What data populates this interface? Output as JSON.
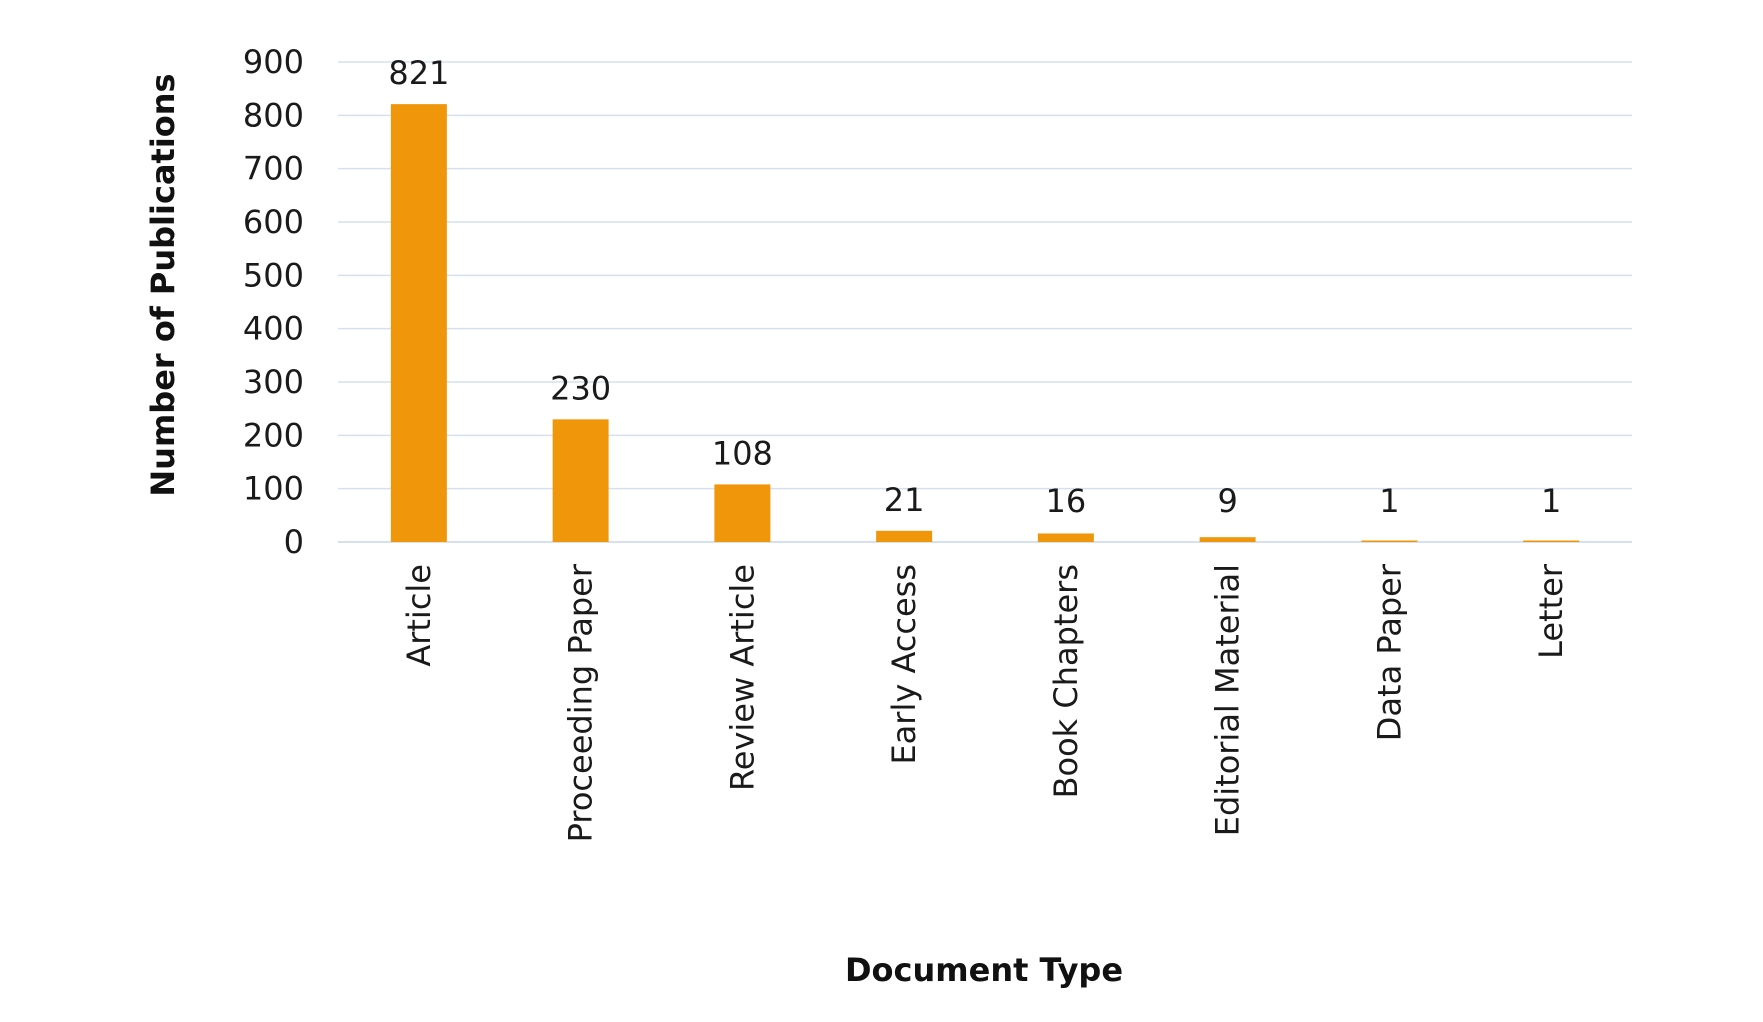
{
  "chart_data": {
    "type": "bar",
    "categories": [
      "Article",
      "Proceeding Paper",
      "Review Article",
      "Early Access",
      "Book Chapters",
      "Editorial Material",
      "Data Paper",
      "Letter"
    ],
    "values": [
      821,
      230,
      108,
      21,
      16,
      9,
      1,
      1
    ],
    "data_labels": [
      "821",
      "230",
      "108",
      "21",
      "16",
      "9",
      "1",
      "1"
    ],
    "title": "",
    "xlabel": "Document Type",
    "ylabel": "Number of Publications",
    "ylim": [
      0,
      900
    ],
    "yticks": [
      0,
      100,
      200,
      300,
      400,
      500,
      600,
      700,
      800,
      900
    ],
    "grid": true,
    "legend": "none",
    "bar_color": "#f0960a",
    "grid_color": "#d6e0ee"
  }
}
